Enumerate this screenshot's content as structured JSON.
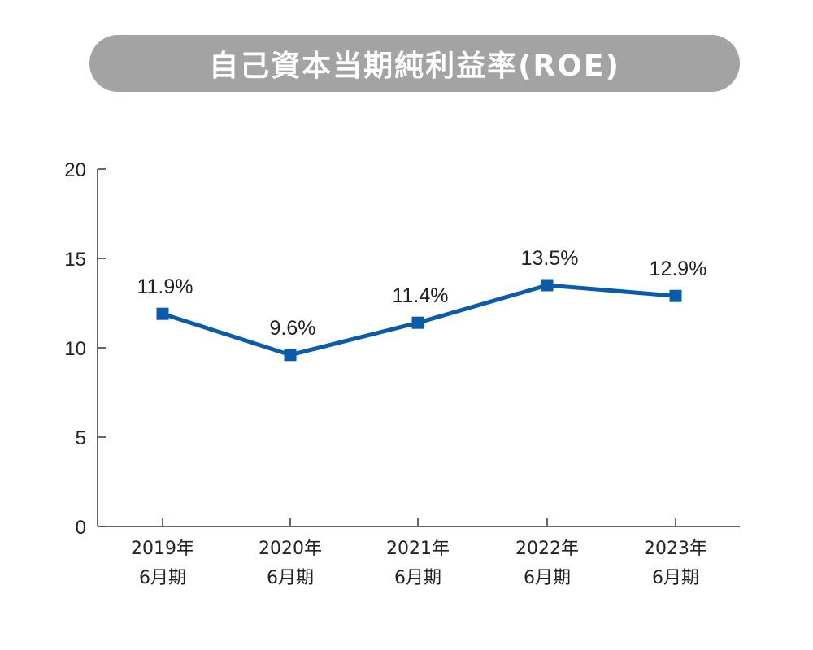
{
  "chart_data": {
    "type": "line",
    "title": "自己資本当期純利益率(ROE)",
    "categories": [
      [
        "2019年",
        "6月期"
      ],
      [
        "2020年",
        "6月期"
      ],
      [
        "2021年",
        "6月期"
      ],
      [
        "2022年",
        "6月期"
      ],
      [
        "2023年",
        "6月期"
      ]
    ],
    "values": [
      11.9,
      9.6,
      11.4,
      13.5,
      12.9
    ],
    "data_labels": [
      "11.9%",
      "9.6%",
      "11.4%",
      "13.5%",
      "12.9%"
    ],
    "ylim": [
      0,
      20
    ],
    "yticks": [
      "0",
      "5",
      "10",
      "15",
      "20"
    ],
    "grid": false,
    "legend": "none",
    "colors": {
      "line": "#0a5cab",
      "title_bg": "#a3a3a3",
      "axis": "#333333"
    }
  }
}
